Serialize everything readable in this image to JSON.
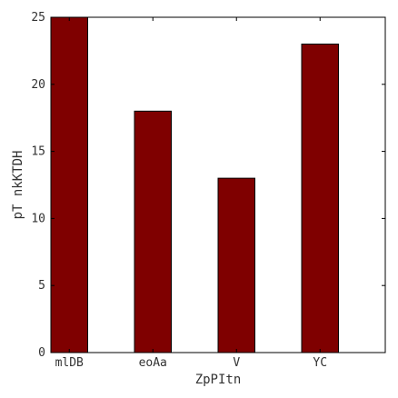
{
  "chart_data": {
    "type": "bar",
    "title": "",
    "xlabel": "ZpPItn",
    "ylabel": "pT nkKTDH",
    "categories": [
      "mlDB",
      "eoAa",
      "V",
      "YC"
    ],
    "values": [
      25,
      18,
      13,
      23
    ],
    "ylim": [
      0,
      25
    ],
    "yticks": [
      0,
      5,
      10,
      15,
      20,
      25
    ],
    "grid": false,
    "legend": "none",
    "bar_color": "#7f0000",
    "bar_edge_color": "#000000"
  }
}
